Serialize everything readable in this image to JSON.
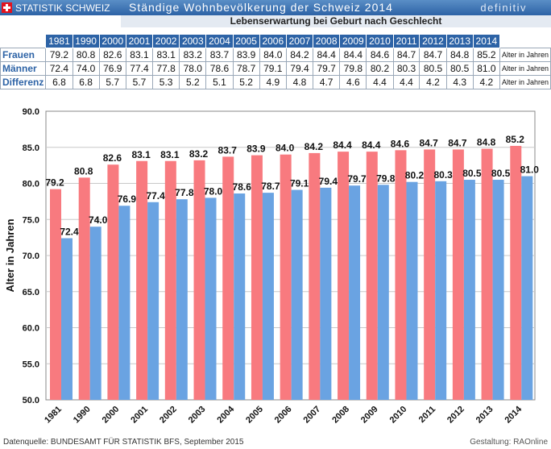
{
  "header": {
    "brand": "STATISTIK SCHWEIZ",
    "title": "Ständige Wohnbevölkerung der Schweiz 2014",
    "status": "definitiv",
    "subtitle": "Lebenserwartung bei Geburt nach Geschlecht"
  },
  "table": {
    "rows": [
      {
        "label": "Frauen",
        "values": [
          "79.2",
          "80.8",
          "82.6",
          "83.1",
          "83.1",
          "83.2",
          "83.7",
          "83.9",
          "84.0",
          "84.2",
          "84.4",
          "84.4",
          "84.6",
          "84.7",
          "84.7",
          "84.8",
          "85.2"
        ]
      },
      {
        "label": "Männer",
        "values": [
          "72.4",
          "74.0",
          "76.9",
          "77.4",
          "77.8",
          "78.0",
          "78.6",
          "78.7",
          "79.1",
          "79.4",
          "79.7",
          "79.8",
          "80.2",
          "80.3",
          "80.5",
          "80.5",
          "81.0"
        ]
      },
      {
        "label": "Differenz",
        "values": [
          "6.8",
          "6.8",
          "5.7",
          "5.7",
          "5.3",
          "5.2",
          "5.1",
          "5.2",
          "4.9",
          "4.8",
          "4.7",
          "4.6",
          "4.4",
          "4.4",
          "4.2",
          "4.3",
          "4.2"
        ]
      }
    ],
    "unit": "Alter in Jahren"
  },
  "chart_data": {
    "type": "bar",
    "categories": [
      "1981",
      "1990",
      "2000",
      "2001",
      "2002",
      "2003",
      "2004",
      "2005",
      "2006",
      "2007",
      "2008",
      "2009",
      "2010",
      "2011",
      "2012",
      "2013",
      "2014"
    ],
    "series": [
      {
        "values": [
          79.2,
          80.8,
          82.6,
          83.1,
          83.1,
          83.2,
          83.7,
          83.9,
          84.0,
          84.2,
          84.4,
          84.4,
          84.6,
          84.7,
          84.7,
          84.8,
          85.2
        ]
      },
      {
        "values": [
          72.4,
          74.0,
          76.9,
          77.4,
          77.8,
          78.0,
          78.6,
          78.7,
          79.1,
          79.4,
          79.7,
          79.8,
          80.2,
          80.3,
          80.5,
          80.5,
          81.0
        ]
      }
    ],
    "ylabel": "Alter in Jahren",
    "ylim": [
      50,
      90
    ],
    "yticks": [
      "50.0",
      "55.0",
      "60.0",
      "65.0",
      "70.0",
      "75.0",
      "80.0",
      "85.0",
      "90.0"
    ],
    "grid": true,
    "colors": {
      "women": "#f87a7f",
      "men": "#6aa3e2"
    }
  },
  "footer": {
    "source": "Datenquelle: BUNDESAMT FÜR STATISTIK BFS, September 2015",
    "credit": "Gestaltung: RAOnline"
  }
}
